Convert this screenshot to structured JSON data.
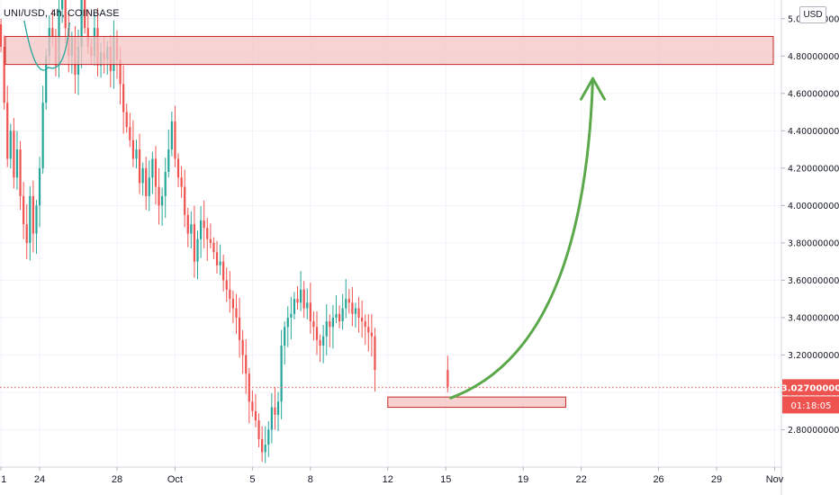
{
  "header": {
    "symbol_line": "UNI/USD, 4h, COINBASE"
  },
  "currency_button": "USD",
  "price_label": "3.02700000",
  "countdown_label": "01:18:05",
  "colors": {
    "up": "#26a69a",
    "down": "#ef5350",
    "zone_fill": "#f5c4c4",
    "zone_stroke": "#c62828",
    "arrow": "#5aa84a",
    "curve": "#26a69a",
    "last_price": "#ef5350"
  },
  "chart_data": {
    "type": "candlestick",
    "title": "UNI/USD, 4h, COINBASE",
    "y_ticks": [
      2.8,
      3.0,
      3.2,
      3.4,
      3.6,
      3.8,
      4.0,
      4.2,
      4.4,
      4.6,
      4.8,
      5.0
    ],
    "y_tick_labels": [
      "2.80000000",
      "3.00000000",
      "3.20000000",
      "3.40000000",
      "3.60000000",
      "3.80000000",
      "4.00000000",
      "4.20000000",
      "4.40000000",
      "4.60000000",
      "4.80000000",
      "5.00000000"
    ],
    "ylim": [
      2.6,
      5.1
    ],
    "x_ticks": [
      {
        "day": -2,
        "label": "1"
      },
      {
        "day": 0,
        "label": "24"
      },
      {
        "day": 4,
        "label": "28"
      },
      {
        "day": 7,
        "label": "Oct"
      },
      {
        "day": 11,
        "label": "5"
      },
      {
        "day": 14,
        "label": "8"
      },
      {
        "day": 18,
        "label": "12"
      },
      {
        "day": 21,
        "label": "15"
      },
      {
        "day": 25,
        "label": "19"
      },
      {
        "day": 28,
        "label": "22"
      },
      {
        "day": 32,
        "label": "26"
      },
      {
        "day": 35,
        "label": "29"
      },
      {
        "day": 38,
        "label": "Nov"
      }
    ],
    "xlim_days": [
      -2.05,
      38.35
    ],
    "candles_per_day": 6,
    "first_candle_day": -2,
    "closes": [
      4.85,
      4.55,
      4.25,
      4.4,
      4.15,
      4.3,
      4.05,
      3.9,
      3.8,
      4.05,
      3.85,
      4.0,
      4.2,
      4.55,
      4.8,
      4.95,
      4.9,
      4.75,
      5.05,
      5.25,
      4.95,
      4.8,
      4.9,
      4.7,
      4.85,
      5.1,
      4.95,
      4.85,
      4.8,
      4.95,
      4.75,
      4.82,
      4.78,
      4.85,
      4.72,
      4.9,
      4.78,
      4.65,
      4.5,
      4.42,
      4.35,
      4.25,
      4.3,
      4.12,
      4.2,
      4.05,
      4.15,
      4.25,
      4.1,
      4.0,
      4.05,
      4.18,
      4.3,
      4.45,
      4.25,
      4.15,
      4.1,
      3.95,
      3.85,
      3.9,
      3.7,
      3.82,
      3.92,
      3.88,
      3.82,
      3.8,
      3.75,
      3.68,
      3.7,
      3.6,
      3.55,
      3.5,
      3.45,
      3.4,
      3.28,
      3.2,
      3.1,
      2.95,
      2.9,
      2.85,
      2.75,
      2.68,
      2.72,
      2.8,
      2.92,
      2.88,
      2.95,
      3.25,
      3.35,
      3.4,
      3.42,
      3.5,
      3.48,
      3.55,
      3.45,
      3.48,
      3.38,
      3.35,
      3.28,
      3.25,
      3.3,
      3.38,
      3.35,
      3.4,
      3.42,
      3.38,
      3.45,
      3.5,
      3.48,
      3.42,
      3.45,
      3.4,
      3.38,
      3.35,
      3.32,
      3.3,
      3.12,
      3.03
    ],
    "last_price": 3.027,
    "last_candle_day": 21.1,
    "resistance_zone": {
      "price_low": 4.755,
      "price_high": 4.905,
      "day_start": -2.05,
      "day_end": 38.35
    },
    "support_zone": {
      "price_low": 2.92,
      "price_high": 2.975,
      "day_start": 18,
      "day_end": 27.2
    },
    "arrow": {
      "start_day": 21.25,
      "start_price": 2.97,
      "end_day": 28.6,
      "end_price": 4.68
    }
  }
}
